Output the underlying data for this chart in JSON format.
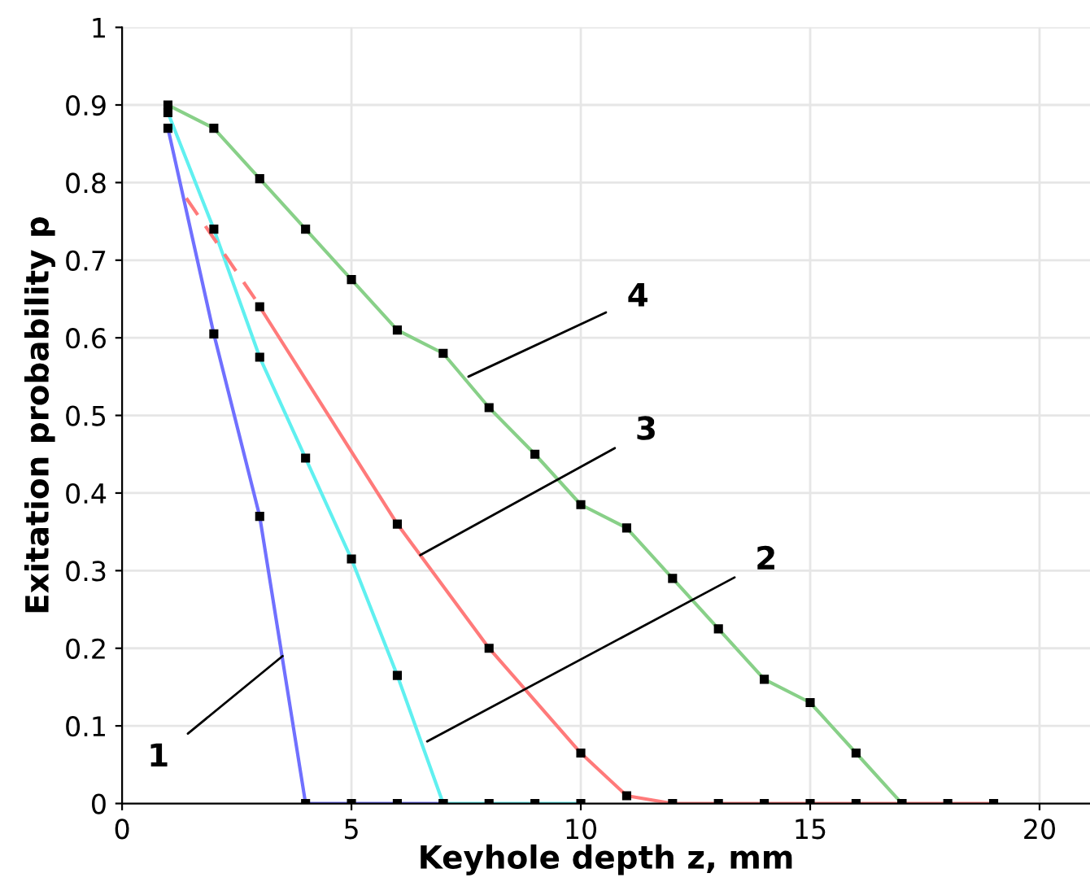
{
  "chart_data": {
    "type": "line",
    "xlabel": "Keyhole depth z, mm",
    "ylabel": "Exitation probability p",
    "xlim": [
      0,
      21.1
    ],
    "ylim": [
      0,
      1
    ],
    "xticks": [
      0,
      5,
      10,
      15,
      20
    ],
    "yticks": [
      0,
      0.1,
      0.2,
      0.3,
      0.4,
      0.5,
      0.6,
      0.7,
      0.8,
      0.9,
      1
    ],
    "grid": true,
    "marker": "square",
    "line_style": "solid",
    "series": [
      {
        "color": "#7070ff",
        "x": [
          1,
          2,
          3,
          4,
          5,
          6,
          7
        ],
        "values": [
          0.87,
          0.605,
          0.37,
          0,
          0,
          0,
          0
        ]
      },
      {
        "color": "#60f0f0",
        "x": [
          1,
          2,
          3,
          4,
          5,
          6,
          7,
          8,
          9,
          10
        ],
        "values": [
          0.89,
          0.74,
          0.575,
          0.445,
          0.315,
          0.165,
          0,
          0,
          0,
          0
        ]
      },
      {
        "color": "#ff7a7a",
        "x": [
          1.4,
          2.9
        ],
        "values": [
          0.78,
          0.65
        ],
        "marker": "none",
        "line_style": "dashed"
      },
      {
        "color": "#ff7a7a",
        "x": [
          3,
          6,
          8,
          10,
          11,
          12,
          13,
          14,
          15,
          16,
          17,
          18,
          19
        ],
        "values": [
          0.64,
          0.36,
          0.2,
          0.065,
          0.01,
          0,
          0,
          0,
          0,
          0,
          0,
          0,
          0
        ]
      },
      {
        "color": "#88d088",
        "x": [
          1,
          2,
          3,
          4,
          5,
          6,
          7,
          8,
          9,
          10,
          11,
          12,
          13,
          14,
          15,
          16,
          17
        ],
        "values": [
          0.9,
          0.87,
          0.805,
          0.74,
          0.675,
          0.61,
          0.58,
          0.51,
          0.45,
          0.385,
          0.355,
          0.29,
          0.225,
          0.16,
          0.13,
          0.065,
          0
        ]
      }
    ],
    "annotations": [
      {
        "text": "1",
        "x": 3.5,
        "y": 0.19
      },
      {
        "text": "2",
        "x": 6.65,
        "y": 0.08
      },
      {
        "text": "3",
        "x": 6.5,
        "y": 0.32
      },
      {
        "text": "4",
        "x": 7.55,
        "y": 0.55
      }
    ]
  }
}
